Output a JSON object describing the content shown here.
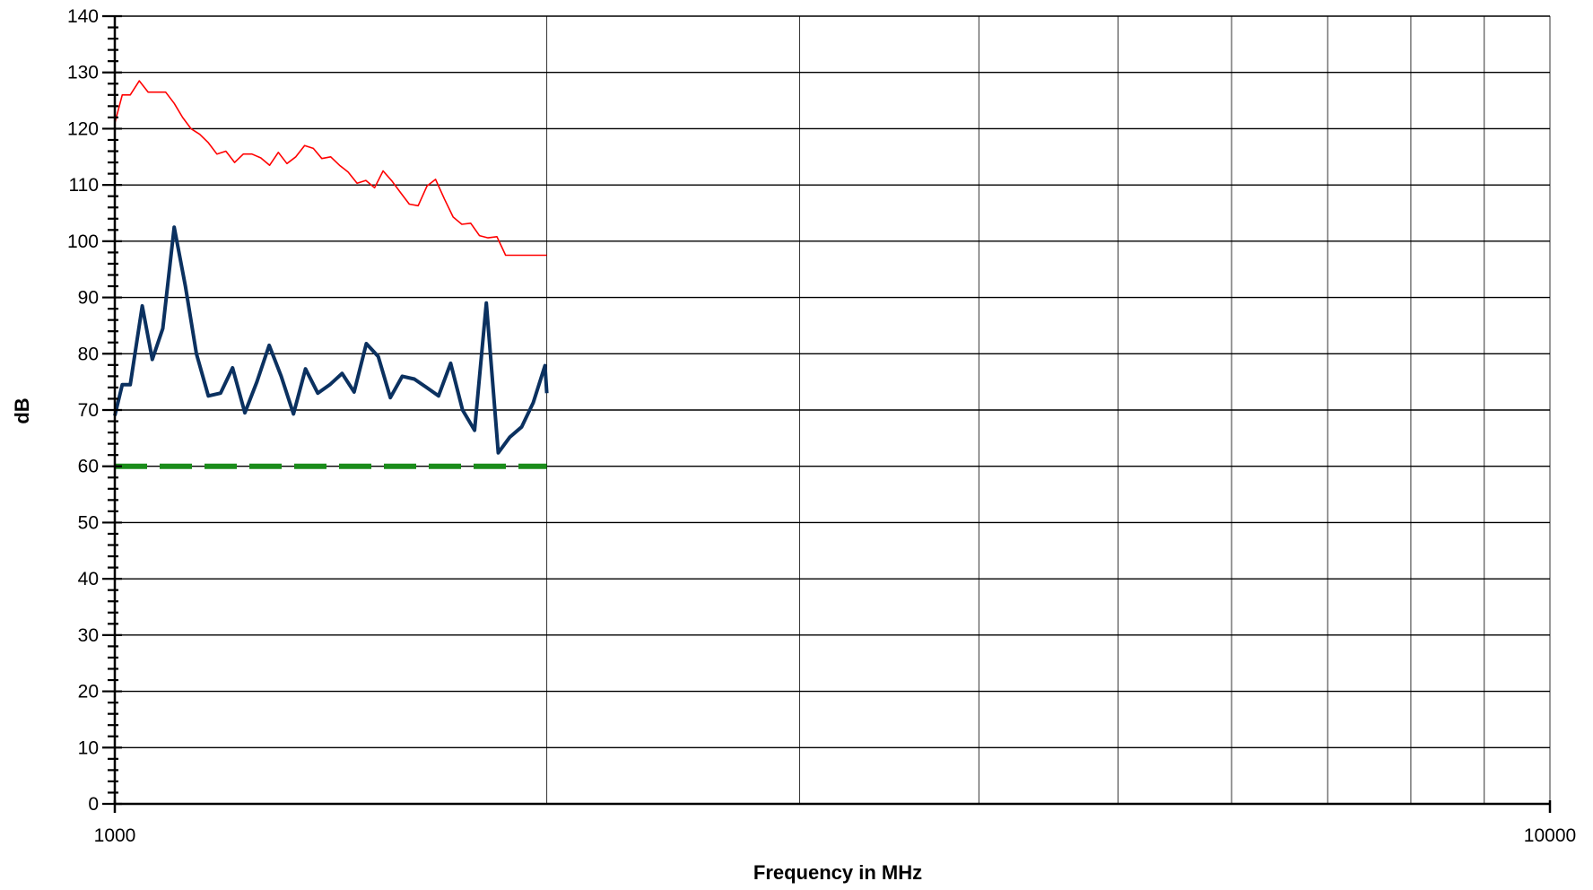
{
  "chart_data": {
    "type": "line",
    "title": "",
    "xlabel": "Frequency in MHz",
    "ylabel": "dB",
    "x_scale": "log",
    "xlim": [
      1000,
      10000
    ],
    "ylim": [
      0,
      140
    ],
    "y_ticks": [
      0,
      10,
      20,
      30,
      40,
      50,
      60,
      70,
      80,
      90,
      100,
      110,
      120,
      130,
      140
    ],
    "x_tick_labels": [
      "1000",
      "10000"
    ],
    "x_gridlines": [
      1000,
      2000,
      3000,
      4000,
      5000,
      6000,
      7000,
      8000,
      9000,
      10000
    ],
    "grid": true,
    "legend": "none",
    "series": [
      {
        "color": "#ff0000",
        "stroke": "thin",
        "x": [
          1000,
          1012,
          1025,
          1040,
          1055,
          1070,
          1085,
          1100,
          1115,
          1130,
          1146,
          1162,
          1178,
          1195,
          1212,
          1229,
          1246,
          1264,
          1282,
          1300,
          1318,
          1337,
          1356,
          1375,
          1394,
          1414,
          1434,
          1454,
          1475,
          1496,
          1517,
          1538,
          1560,
          1582,
          1604,
          1627,
          1650,
          1673,
          1697,
          1721,
          1745,
          1770,
          1795,
          1820,
          1846,
          1872,
          1898,
          1925,
          1952,
          1980,
          2000
        ],
        "y": [
          121,
          126,
          126,
          128.5,
          126.5,
          126.5,
          126.5,
          124.5,
          122,
          120,
          119,
          117.5,
          115.5,
          116,
          114,
          115.5,
          115.5,
          114.8,
          113.5,
          115.8,
          113.8,
          115,
          117,
          116.5,
          114.7,
          115,
          113.5,
          112.3,
          110.3,
          110.8,
          109.5,
          112.5,
          110.7,
          108.6,
          106.6,
          106.3,
          109.8,
          111,
          107.5,
          104.3,
          103,
          103.2,
          101,
          100.6,
          100.8,
          97.5,
          97.5,
          97.5,
          97.5,
          97.5,
          97.5
        ]
      },
      {
        "color": "#0b3160",
        "stroke": "thick",
        "x": [
          1000,
          1012,
          1025,
          1045,
          1062,
          1080,
          1100,
          1120,
          1140,
          1162,
          1185,
          1208,
          1232,
          1256,
          1281,
          1306,
          1332,
          1358,
          1385,
          1412,
          1440,
          1468,
          1497,
          1526,
          1556,
          1586,
          1617,
          1649,
          1681,
          1714,
          1747,
          1781,
          1815,
          1850,
          1885,
          1921,
          1957,
          1994,
          2000
        ],
        "y": [
          69,
          74.5,
          74.5,
          88.5,
          79,
          84.5,
          102.5,
          92,
          80,
          72.5,
          73,
          77.5,
          69.5,
          75,
          81.5,
          76,
          69.3,
          77.3,
          73,
          74.5,
          76.5,
          73.2,
          81.8,
          79.5,
          72.2,
          76,
          75.5,
          74,
          72.5,
          78.3,
          70,
          66.4,
          89,
          62.4,
          65.2,
          67,
          71.3,
          77.9,
          73
        ]
      },
      {
        "color": "#1a8c1a",
        "stroke": "dashed",
        "x": [
          1000,
          2000
        ],
        "y": [
          60,
          60
        ]
      }
    ]
  }
}
